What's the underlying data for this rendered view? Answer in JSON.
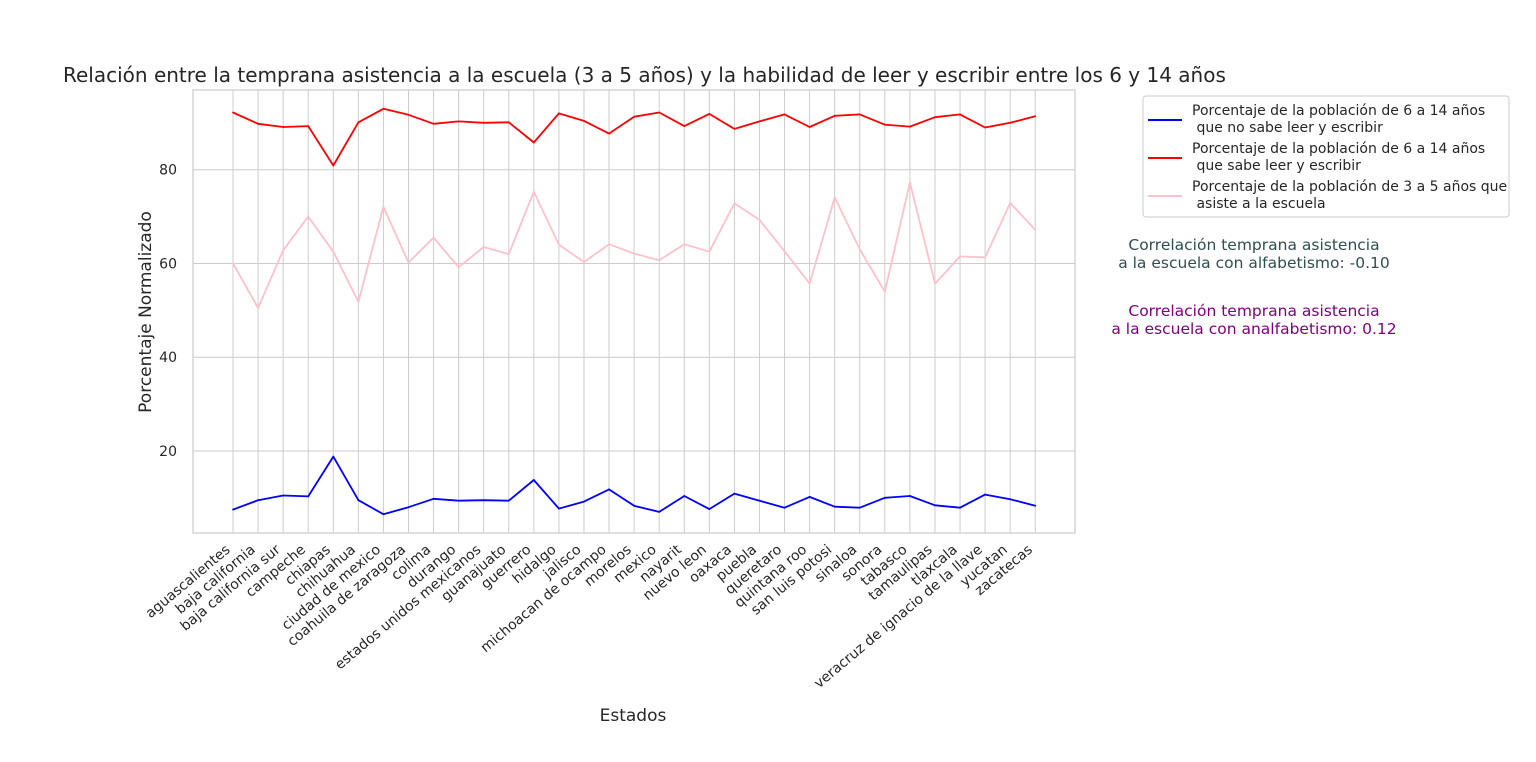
{
  "chart_data": {
    "type": "line",
    "title": "Relación entre la temprana asistencia a la escuela (3 a 5 años) y la habilidad de leer y escribir entre los 6 y 14 años",
    "xlabel": "Estados",
    "ylabel": "Porcentaje Normalizado",
    "ylim": [
      2.5,
      97
    ],
    "yticks": [
      20,
      40,
      60,
      80
    ],
    "grid": true,
    "legend_position": "upper-right-outside",
    "categories": [
      "aguascalientes",
      "baja california",
      "baja california sur",
      "campeche",
      "chiapas",
      "chihuahua",
      "ciudad de mexico",
      "coahuila de zaragoza",
      "colima",
      "durango",
      "estados unidos mexicanos",
      "guanajuato",
      "guerrero",
      "hidalgo",
      "jalisco",
      "michoacan de ocampo",
      "morelos",
      "mexico",
      "nayarit",
      "nuevo leon",
      "oaxaca",
      "puebla",
      "queretaro",
      "quintana roo",
      "san luis potosi",
      "sinaloa",
      "sonora",
      "tabasco",
      "tamaulipas",
      "tlaxcala",
      "veracruz de ignacio de la llave",
      "yucatan",
      "zacatecas"
    ],
    "series": [
      {
        "name": "Porcentaje de la población de 6 a 14 años\n que no sabe leer y escribir",
        "color": "#0000ff",
        "values": [
          7.5,
          9.5,
          10.5,
          10.3,
          18.8,
          9.5,
          6.5,
          8.0,
          9.8,
          9.4,
          9.5,
          9.4,
          13.8,
          7.7,
          9.2,
          11.8,
          8.3,
          7.0,
          10.4,
          7.6,
          10.9,
          9.4,
          7.9,
          10.2,
          8.1,
          7.9,
          10.0,
          10.4,
          8.4,
          7.9,
          10.7,
          9.7,
          8.3
        ]
      },
      {
        "name": "Porcentaje de la población de 6 a 14 años\n que sabe leer y escribir",
        "color": "#ff0000",
        "values": [
          92.2,
          89.8,
          89.1,
          89.3,
          80.9,
          90.1,
          93.0,
          91.7,
          89.8,
          90.3,
          90.0,
          90.1,
          85.8,
          92.0,
          90.4,
          87.7,
          91.3,
          92.2,
          89.3,
          91.9,
          88.7,
          90.3,
          91.8,
          89.1,
          91.5,
          91.8,
          89.6,
          89.2,
          91.2,
          91.8,
          89.0,
          90.0,
          91.4
        ]
      },
      {
        "name": "Porcentaje de la población de 3 a 5 años que\n asiste a la escuela",
        "color": "#ffc0cb",
        "values": [
          60.0,
          50.5,
          62.8,
          70.0,
          62.5,
          51.8,
          72.1,
          60.2,
          65.5,
          59.2,
          63.5,
          62.0,
          75.3,
          64.0,
          60.3,
          64.1,
          62.1,
          60.7,
          64.1,
          62.5,
          72.8,
          69.3,
          62.6,
          55.7,
          74.1,
          63.0,
          54.0,
          77.3,
          55.7,
          61.5,
          61.3,
          72.9,
          67.2
        ]
      }
    ],
    "annotations": [
      {
        "text": "Correlación temprana asistencia\na la escuela con alfabetismo: -0.10",
        "color": "#2f4f4f"
      },
      {
        "text": "Correlación temprana asistencia\na la escuela con analfabetismo: 0.12",
        "color": "#800080"
      }
    ]
  }
}
